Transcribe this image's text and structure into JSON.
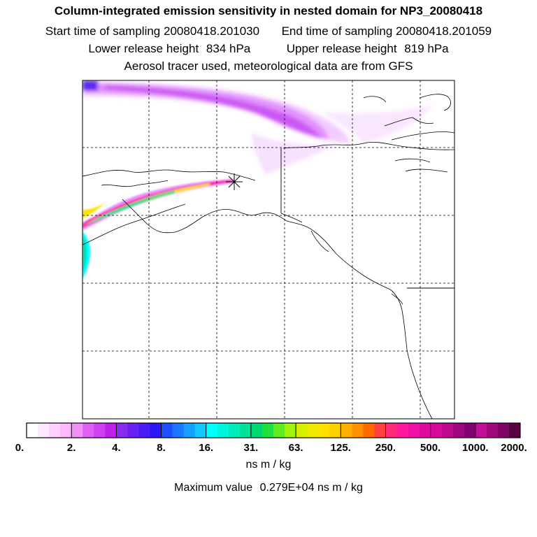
{
  "title": "Column-integrated emission sensitivity in nested domain for NP3_20080418",
  "sampling": {
    "start_label": "Start time of sampling",
    "start_value": "20080418.201030",
    "end_label": "End time of sampling",
    "end_value": "20080418.201059"
  },
  "release": {
    "lower_label": "Lower release height",
    "lower_value": "834 hPa",
    "upper_label": "Upper release height",
    "upper_value": "819 hPa"
  },
  "tracer_note": "Aerosol tracer used, meteorological data are from GFS",
  "colorbar": {
    "tick_labels": [
      "0.",
      "2.",
      "4.",
      "8.",
      "16.",
      "31.",
      "63.",
      "125.",
      "250.",
      "500.",
      "1000.",
      "2000."
    ],
    "colors": [
      "#ffffff",
      "#ffe8ff",
      "#ffd0ff",
      "#ffb8ff",
      "#f090f8",
      "#e060f5",
      "#d040f0",
      "#c020ee",
      "#8a2cf0",
      "#6a22f3",
      "#4a1cf6",
      "#2a18f9",
      "#1e50ff",
      "#1a78ff",
      "#16a0ff",
      "#12c8ff",
      "#00ffff",
      "#00f5dd",
      "#00ebbb",
      "#00e199",
      "#00d870",
      "#20e040",
      "#60ec20",
      "#a0f410",
      "#d8f000",
      "#f0e800",
      "#ffe000",
      "#ffd000",
      "#ffb000",
      "#ff9000",
      "#ff6a00",
      "#ff4040",
      "#ff2a7a",
      "#ff1a9a",
      "#f010a8",
      "#e00aa0",
      "#d60a98",
      "#bf0890",
      "#a00680",
      "#800470",
      "#c0109a",
      "#a0087e",
      "#800566",
      "#5a0344"
    ],
    "units": "ns m / kg"
  },
  "maximum": {
    "label": "Maximum value",
    "value": "0.279E+04",
    "units": "ns m / kg"
  },
  "map": {
    "receptor_marker": "release-point-asterisk",
    "plume_colors": [
      "#e8a0ff",
      "#cc44ee",
      "#00ffff",
      "#ffe000",
      "#ff20a0"
    ]
  }
}
